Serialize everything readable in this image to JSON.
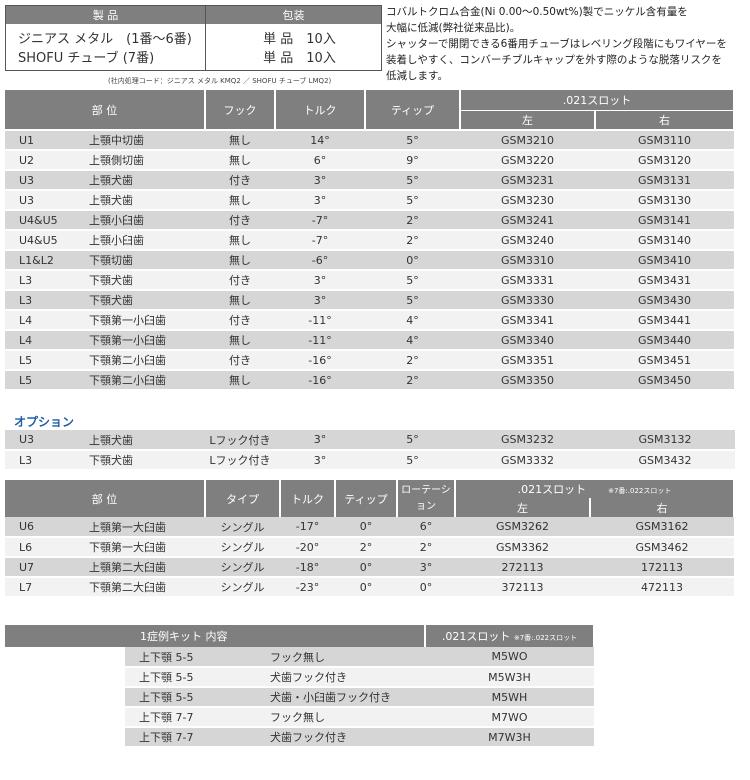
{
  "product_table": {
    "headers": [
      "製 品",
      "包装"
    ],
    "rows": [
      [
        "ジニアス メタル　(1番〜6番)",
        "単 品　10入"
      ],
      [
        "SHOFU チューブ (7番)",
        "単 品　10入"
      ]
    ],
    "note": "(社内処理コード：ジニアス メタル KMQ2 ／ SHOFU チューブ LMQ2)"
  },
  "description": [
    "コバルトクロム合金(Ni 0.00〜0.50wt%)製でニッケル含有量を",
    "大幅に低減(弊社従来品比)。",
    "シャッターで開閉できる6番用チューブはレベリング段階にもワイヤーを",
    "装着しやすく、コンバーチブルキャップを外す際のような脱落リスクを",
    "低減します。"
  ],
  "table1": {
    "headers": {
      "part": "部 位",
      "hook": "フック",
      "torque": "トルク",
      "tip": "ティップ",
      "slot": ".021スロット",
      "left": "左",
      "right": "右"
    },
    "rows": [
      [
        "U1",
        "上顎中切歯",
        "無し",
        "14°",
        "5°",
        "GSM3210",
        "GSM3110"
      ],
      [
        "U2",
        "上顎側切歯",
        "無し",
        "6°",
        "9°",
        "GSM3220",
        "GSM3120"
      ],
      [
        "U3",
        "上顎犬歯",
        "付き",
        "3°",
        "5°",
        "GSM3231",
        "GSM3131"
      ],
      [
        "U3",
        "上顎犬歯",
        "無し",
        "3°",
        "5°",
        "GSM3230",
        "GSM3130"
      ],
      [
        "U4&U5",
        "上顎小臼歯",
        "付き",
        "-7°",
        "2°",
        "GSM3241",
        "GSM3141"
      ],
      [
        "U4&U5",
        "上顎小臼歯",
        "無し",
        "-7°",
        "2°",
        "GSM3240",
        "GSM3140"
      ],
      [
        "L1&L2",
        "下顎切歯",
        "無し",
        "-6°",
        "0°",
        "GSM3310",
        "GSM3410"
      ],
      [
        "L3",
        "下顎犬歯",
        "付き",
        "3°",
        "5°",
        "GSM3331",
        "GSM3431"
      ],
      [
        "L3",
        "下顎犬歯",
        "無し",
        "3°",
        "5°",
        "GSM3330",
        "GSM3430"
      ],
      [
        "L4",
        "下顎第一小臼歯",
        "付き",
        "-11°",
        "4°",
        "GSM3341",
        "GSM3441"
      ],
      [
        "L4",
        "下顎第一小臼歯",
        "無し",
        "-11°",
        "4°",
        "GSM3340",
        "GSM3440"
      ],
      [
        "L5",
        "下顎第二小臼歯",
        "付き",
        "-16°",
        "2°",
        "GSM3351",
        "GSM3451"
      ],
      [
        "L5",
        "下顎第二小臼歯",
        "無し",
        "-16°",
        "2°",
        "GSM3350",
        "GSM3450"
      ]
    ],
    "option_label": "オプション",
    "option_rows": [
      [
        "U3",
        "上顎犬歯",
        "Lフック付き",
        "3°",
        "5°",
        "GSM3232",
        "GSM3132"
      ],
      [
        "L3",
        "下顎犬歯",
        "Lフック付き",
        "3°",
        "5°",
        "GSM3332",
        "GSM3432"
      ]
    ]
  },
  "table2": {
    "headers": {
      "part": "部 位",
      "type": "タイプ",
      "torque": "トルク",
      "tip": "ティップ",
      "rotation": "ローテーション",
      "slot": ".021スロット",
      "slot_note": "※7番:.022スロット",
      "left": "左",
      "right": "右"
    },
    "rows": [
      [
        "U6",
        "上顎第一大臼歯",
        "シングル",
        "-17°",
        "0°",
        "6°",
        "GSM3262",
        "GSM3162"
      ],
      [
        "L6",
        "下顎第一大臼歯",
        "シングル",
        "-20°",
        "2°",
        "2°",
        "GSM3362",
        "GSM3462"
      ],
      [
        "U7",
        "上顎第二大臼歯",
        "シングル",
        "-18°",
        "0°",
        "3°",
        "272113",
        "172113"
      ],
      [
        "L7",
        "下顎第二大臼歯",
        "シングル",
        "-23°",
        "0°",
        "0°",
        "372113",
        "472113"
      ]
    ]
  },
  "kit_table": {
    "headers": {
      "content": "1症例キット 内容",
      "slot": ".021スロット",
      "slot_note": "※7番:.022スロット"
    },
    "rows": [
      [
        "上下顎 5-5",
        "フック無し",
        "M5WO"
      ],
      [
        "上下顎 5-5",
        "犬歯フック付き",
        "M5W3H"
      ],
      [
        "上下顎 5-5",
        "犬歯・小臼歯フック付き",
        "M5WH"
      ],
      [
        "上下顎 7-7",
        "フック無し",
        "M7WO"
      ],
      [
        "上下顎 7-7",
        "犬歯フック付き",
        "M7W3H"
      ]
    ]
  }
}
